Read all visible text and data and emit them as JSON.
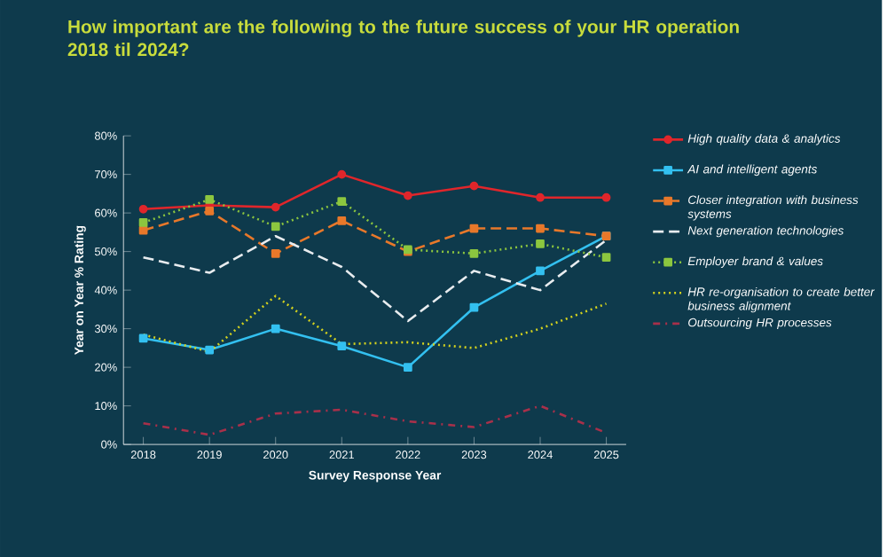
{
  "chart_data": {
    "type": "line",
    "title": "How important are the following to the future success of your HR operation 2018 til 2024?",
    "xlabel": "Survey Response Year",
    "ylabel": "Year on Year % Rating",
    "categories": [
      "2018",
      "2019",
      "2020",
      "2021",
      "2022",
      "2023",
      "2024",
      "2025"
    ],
    "ylim": [
      0,
      80
    ],
    "yticks": [
      {
        "value": 0,
        "label": "0%"
      },
      {
        "value": 10,
        "label": "10%"
      },
      {
        "value": 20,
        "label": "20%"
      },
      {
        "value": 30,
        "label": "30%"
      },
      {
        "value": 40,
        "label": "40%"
      },
      {
        "value": 50,
        "label": "50%"
      },
      {
        "value": 60,
        "label": "60%"
      },
      {
        "value": 70,
        "label": "70%"
      },
      {
        "value": 80,
        "label": "80%"
      }
    ],
    "grid": false,
    "legend": "right",
    "series": [
      {
        "name": "High quality data & analytics",
        "color": "#e0262b",
        "marker": "circle",
        "line_style": "solid",
        "values": [
          61,
          62,
          61.5,
          70,
          64.5,
          67,
          64,
          64
        ]
      },
      {
        "name": "AI and intelligent agents",
        "color": "#33c0f0",
        "marker": "square",
        "line_style": "solid",
        "values": [
          27.5,
          24.5,
          30,
          25.5,
          20,
          35.5,
          45,
          54
        ]
      },
      {
        "name": "Closer integration with business systems",
        "color": "#e8782a",
        "marker": "square",
        "line_style": "dashed",
        "values": [
          55.5,
          60.5,
          49.5,
          58,
          50,
          56,
          56,
          54
        ]
      },
      {
        "name": "Next generation technologies",
        "color": "#e8ecef",
        "marker": "none",
        "line_style": "dashed",
        "values": [
          48.5,
          44.5,
          54,
          46,
          32,
          45,
          40,
          53
        ]
      },
      {
        "name": "Employer brand & values",
        "color": "#8cc63f",
        "marker": "square",
        "line_style": "dotted",
        "values": [
          57.5,
          63.5,
          56.5,
          63,
          50.5,
          49.5,
          52,
          48.5
        ]
      },
      {
        "name": "HR re-organisation to create better business alignment",
        "color": "#d4d21e",
        "marker": "none",
        "line_style": "dotted",
        "values": [
          28.5,
          24,
          38.5,
          26,
          26.5,
          25,
          30,
          36.5
        ]
      },
      {
        "name": "Outsourcing HR processes",
        "color": "#a8304a",
        "marker": "none",
        "line_style": "dashdot",
        "values": [
          5.5,
          2.5,
          8,
          9,
          6,
          4.5,
          10,
          3
        ]
      }
    ]
  }
}
